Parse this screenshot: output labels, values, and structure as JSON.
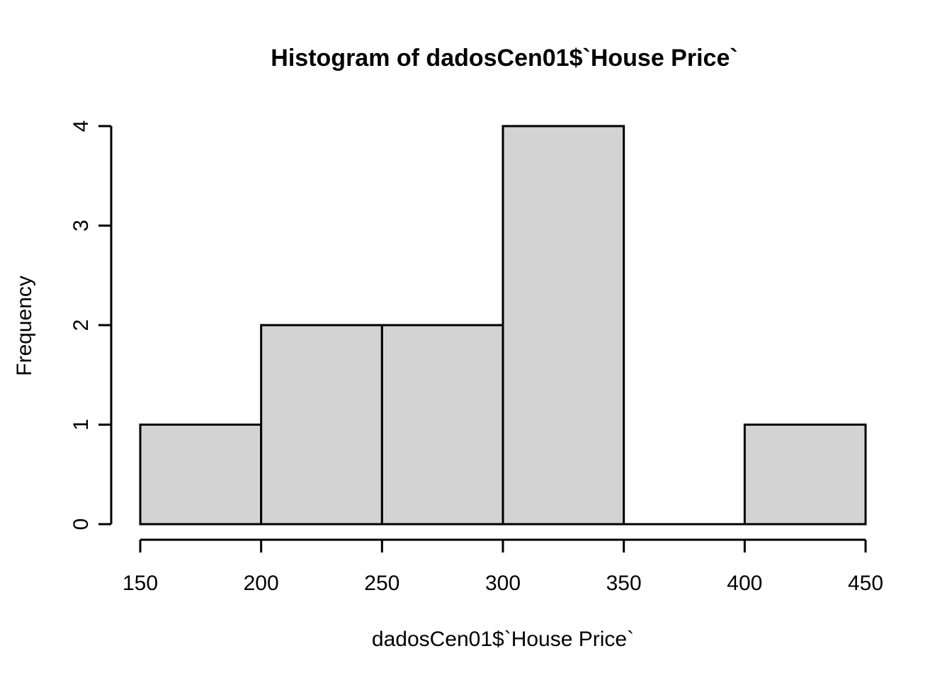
{
  "figure": {
    "background": "#ffffff"
  },
  "chart_data": {
    "type": "bar",
    "subtype": "histogram",
    "title": "Histogram of dadosCen01$`House Price`",
    "xlabel": "dadosCen01$`House Price`",
    "ylabel": "Frequency",
    "categories": [
      "150-200",
      "200-250",
      "250-300",
      "300-350",
      "350-400",
      "400-450"
    ],
    "values": [
      1,
      2,
      2,
      4,
      0,
      1
    ],
    "bins": [
      {
        "from": 150,
        "to": 200,
        "count": 1
      },
      {
        "from": 200,
        "to": 250,
        "count": 2
      },
      {
        "from": 250,
        "to": 300,
        "count": 2
      },
      {
        "from": 300,
        "to": 350,
        "count": 4
      },
      {
        "from": 350,
        "to": 400,
        "count": 0
      },
      {
        "from": 400,
        "to": 450,
        "count": 1
      }
    ],
    "x_ticks": [
      150,
      200,
      250,
      300,
      350,
      400,
      450
    ],
    "y_ticks": [
      0,
      1,
      2,
      3,
      4
    ],
    "xlim": [
      150,
      450
    ],
    "ylim": [
      0,
      4
    ],
    "grid": false,
    "legend_position": "none",
    "bar_fill": "#d3d3d3",
    "bar_border": "#000000",
    "axis_color": "#000000"
  }
}
